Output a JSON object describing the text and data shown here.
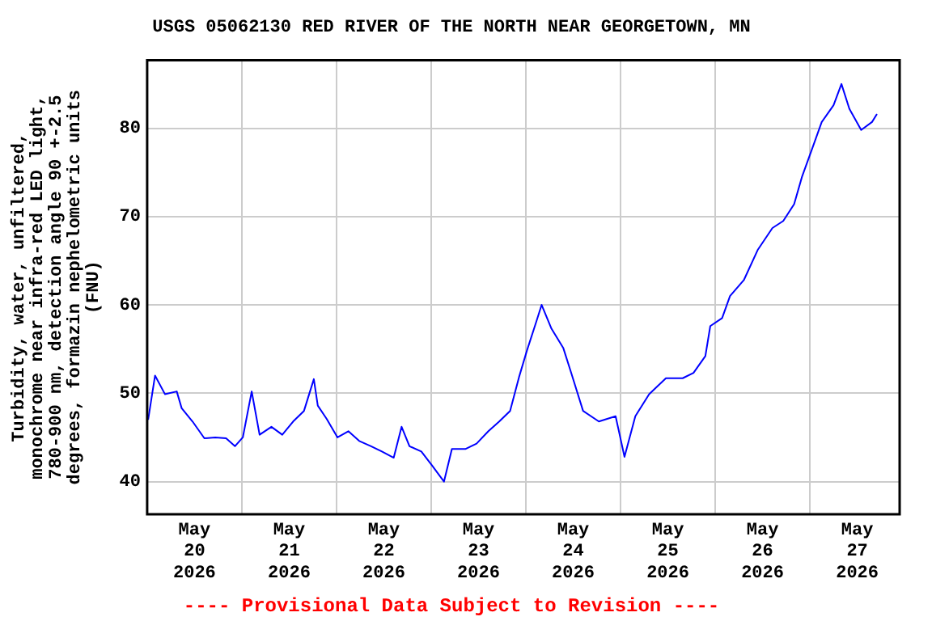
{
  "chart_data": {
    "type": "line",
    "title": "USGS 05062130 RED RIVER OF THE NORTH NEAR GEORGETOWN, MN",
    "ylabel": "Turbidity, water, unfiltered, monochrome near infra-red LED light, 780-900 nm, detection angle 90 +-2.5 degrees, formazin nephelometric units (FNU)",
    "annotations": [
      "---- Provisional Data Subject to Revision ----"
    ],
    "x": [
      "2026-05-20T00:15",
      "2026-05-20T02:00",
      "2026-05-20T04:30",
      "2026-05-20T07:30",
      "2026-05-20T08:45",
      "2026-05-20T11:30",
      "2026-05-20T14:30",
      "2026-05-20T17:15",
      "2026-05-20T20:00",
      "2026-05-20T22:15",
      "2026-05-21T00:15",
      "2026-05-21T02:30",
      "2026-05-21T04:30",
      "2026-05-21T07:30",
      "2026-05-21T10:15",
      "2026-05-21T13:00",
      "2026-05-21T15:45",
      "2026-05-21T18:15",
      "2026-05-21T19:15",
      "2026-05-21T21:30",
      "2026-05-22T00:15",
      "2026-05-22T03:00",
      "2026-05-22T05:45",
      "2026-05-22T08:45",
      "2026-05-22T11:30",
      "2026-05-22T14:30",
      "2026-05-22T16:30",
      "2026-05-22T18:30",
      "2026-05-22T21:30",
      "2026-05-23T00:15",
      "2026-05-23T03:15",
      "2026-05-23T05:15",
      "2026-05-23T08:45",
      "2026-05-23T11:30",
      "2026-05-23T14:30",
      "2026-05-23T17:15",
      "2026-05-23T20:00",
      "2026-05-23T22:15",
      "2026-05-24T00:15",
      "2026-05-24T02:30",
      "2026-05-24T04:00",
      "2026-05-24T06:30",
      "2026-05-24T09:30",
      "2026-05-24T11:30",
      "2026-05-24T14:30",
      "2026-05-24T18:30",
      "2026-05-24T22:45",
      "2026-05-25T01:00",
      "2026-05-25T03:45",
      "2026-05-25T07:15",
      "2026-05-25T11:30",
      "2026-05-25T15:45",
      "2026-05-25T18:30",
      "2026-05-25T21:30",
      "2026-05-25T22:45",
      "2026-05-26T01:45",
      "2026-05-26T03:45",
      "2026-05-26T07:15",
      "2026-05-26T10:45",
      "2026-05-26T14:30",
      "2026-05-26T17:15",
      "2026-05-26T20:00",
      "2026-05-26T22:00",
      "2026-05-27T01:00",
      "2026-05-27T03:00",
      "2026-05-27T06:00",
      "2026-05-27T08:00",
      "2026-05-27T10:00",
      "2026-05-27T13:00",
      "2026-05-27T15:45",
      "2026-05-27T17:00"
    ],
    "series": [
      {
        "color": "#0000ff",
        "values": [
          47,
          52,
          49.9,
          50.2,
          48.3,
          46.8,
          44.9,
          45,
          44.9,
          44,
          45,
          50.2,
          45.3,
          46.2,
          45.3,
          46.8,
          48,
          51.6,
          48.6,
          47.1,
          45,
          45.7,
          44.6,
          44,
          43.4,
          42.7,
          46.2,
          44,
          43.4,
          41.8,
          40,
          43.7,
          43.7,
          44.3,
          45.7,
          46.8,
          48,
          51.8,
          54.8,
          57.9,
          60,
          57.3,
          55.1,
          52.3,
          48,
          46.8,
          47.4,
          42.8,
          47.4,
          49.9,
          51.7,
          51.7,
          52.3,
          54.2,
          57.6,
          58.5,
          61,
          62.8,
          66.2,
          68.7,
          69.5,
          71.4,
          74.5,
          78.2,
          80.7,
          82.6,
          85,
          82.2,
          79.8,
          80.7,
          81.6
        ]
      }
    ],
    "xlim": [
      "2026-05-20T00:00",
      "2026-05-27T22:45"
    ],
    "xticks": [
      {
        "value": "2026-05-20T12:00",
        "label": "May 20 2026"
      },
      {
        "value": "2026-05-21T00:00",
        "label": null
      },
      {
        "value": "2026-05-21T12:00",
        "label": "May 21 2026"
      },
      {
        "value": "2026-05-22T00:00",
        "label": null
      },
      {
        "value": "2026-05-22T12:00",
        "label": "May 22 2026"
      },
      {
        "value": "2026-05-23T00:00",
        "label": null
      },
      {
        "value": "2026-05-23T12:00",
        "label": "May 23 2026"
      },
      {
        "value": "2026-05-24T00:00",
        "label": null
      },
      {
        "value": "2026-05-24T12:00",
        "label": "May 24 2026"
      },
      {
        "value": "2026-05-25T00:00",
        "label": null
      },
      {
        "value": "2026-05-25T12:00",
        "label": "May 25 2026"
      },
      {
        "value": "2026-05-26T00:00",
        "label": null
      },
      {
        "value": "2026-05-26T12:00",
        "label": "May 26 2026"
      },
      {
        "value": "2026-05-27T00:00",
        "label": null
      },
      {
        "value": "2026-05-27T12:00",
        "label": "May 27 2026"
      }
    ],
    "ylim": [
      36.3,
      87.7
    ],
    "yticks": [
      40,
      50,
      60,
      70,
      80
    ],
    "grid": true,
    "legend": false,
    "marker": "none",
    "line_style": "solid"
  }
}
